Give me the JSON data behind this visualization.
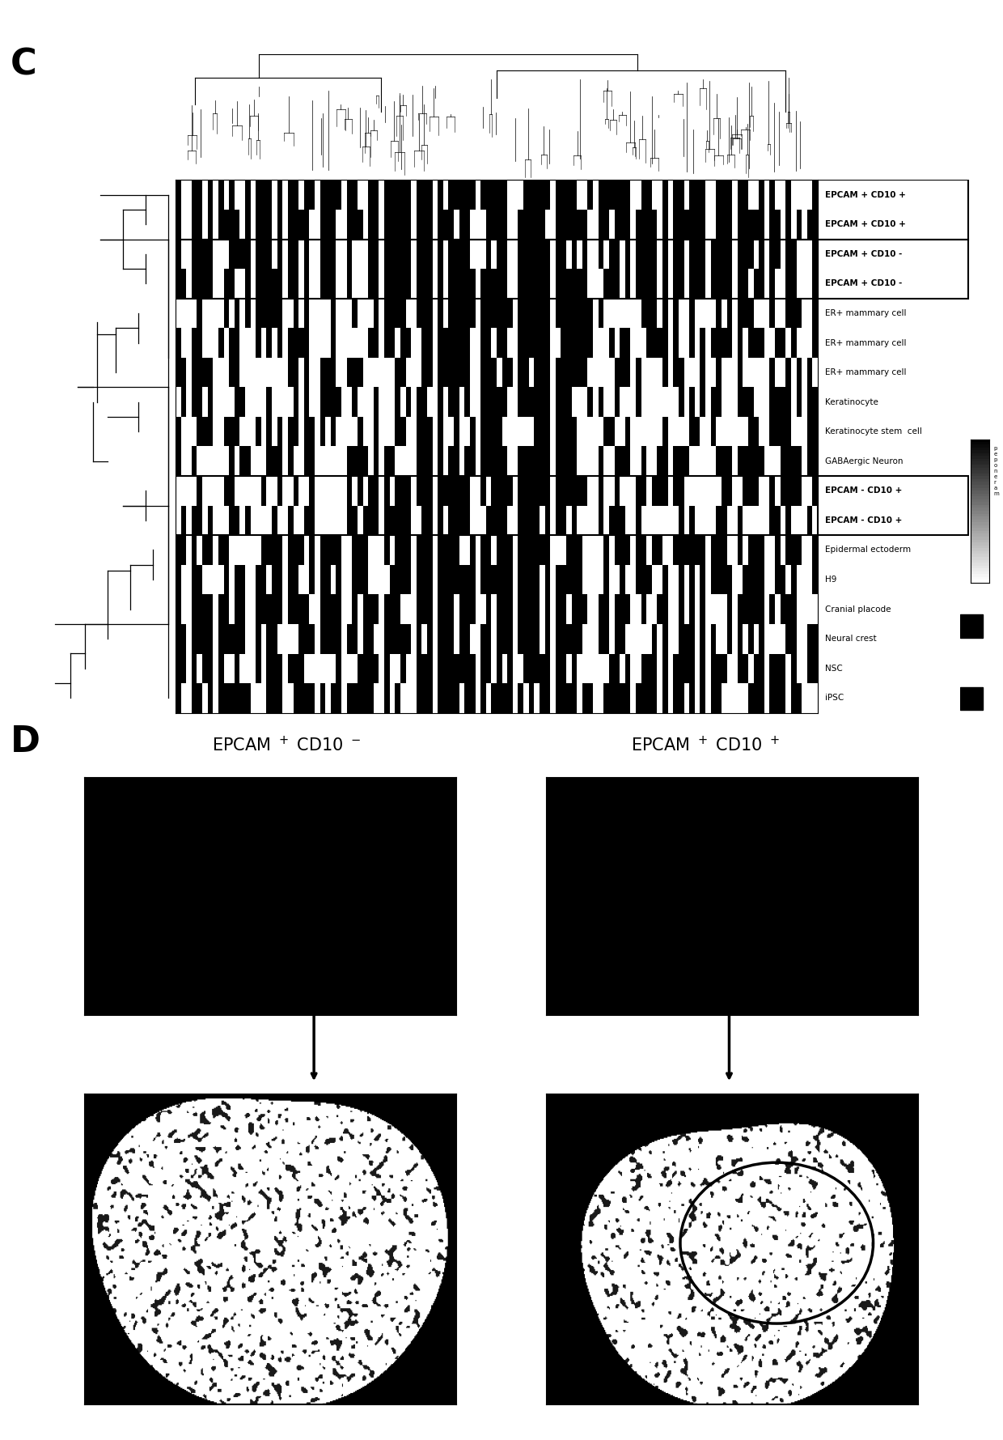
{
  "panel_c_label": "C",
  "panel_d_label": "D",
  "row_labels": [
    "EPCAM + CD10 +",
    "EPCAM + CD10 +",
    "EPCAM + CD10 -",
    "EPCAM + CD10 -",
    "ER+ mammary cell",
    "ER+ mammary cell",
    "ER+ mammary cell",
    "Keratinocyte",
    "Keratinocyte stem  cell",
    "GABAergic Neuron",
    "EPCAM - CD10 +",
    "EPCAM - CD10 +",
    "Epidermal ectoderm",
    "H9",
    "Cranial placode",
    "Neural crest",
    "NSC",
    "iPSC"
  ],
  "boxed_rows": [
    [
      0,
      1
    ],
    [
      2,
      3
    ],
    [
      10,
      11
    ]
  ],
  "bold_rows": [
    0,
    1,
    2,
    3,
    10,
    11
  ],
  "d_left_title": "EPCAM $^+$ CD10 $^-$",
  "d_right_title": "EPCAM $^+$ CD10 $^+$",
  "background_color": "#ffffff"
}
